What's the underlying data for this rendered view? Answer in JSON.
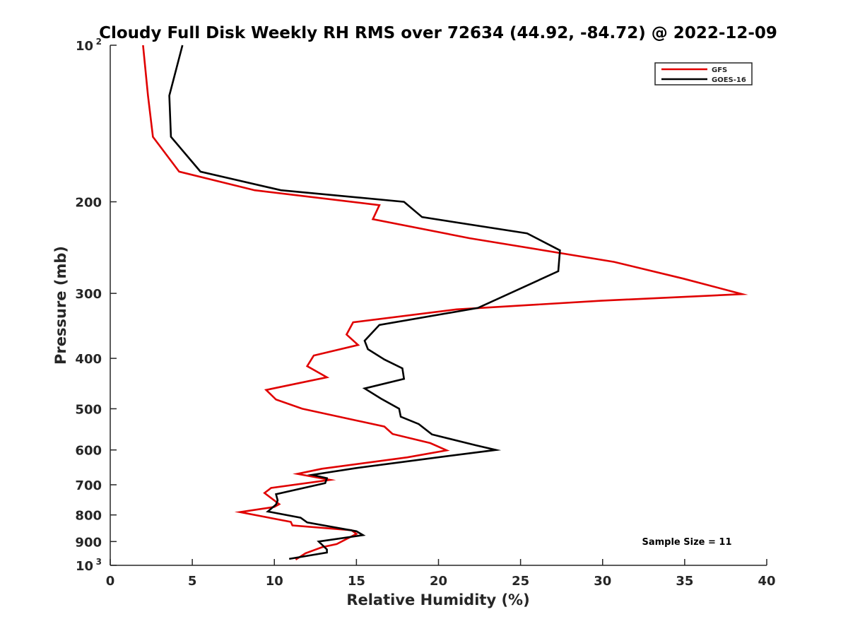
{
  "chart_data": {
    "type": "line",
    "title": "Cloudy Full Disk Weekly RH RMS over 72634 (44.92, -84.72) @ 2022-12-09",
    "xlabel": "Relative Humidity (%)",
    "ylabel": "Pressure (mb)",
    "xlim": [
      0,
      40
    ],
    "ylim": [
      100,
      1000
    ],
    "y_scale": "log",
    "y_reversed": true,
    "x_ticks": [
      "0",
      "5",
      "10",
      "15",
      "20",
      "25",
      "30",
      "35",
      "40"
    ],
    "y_ticks": [
      {
        "value": 100,
        "base": "10",
        "exp": "2"
      },
      {
        "value": 200,
        "label": "200"
      },
      {
        "value": 300,
        "label": "300"
      },
      {
        "value": 400,
        "label": "400"
      },
      {
        "value": 500,
        "label": "500"
      },
      {
        "value": 600,
        "label": "600"
      },
      {
        "value": 700,
        "label": "700"
      },
      {
        "value": 800,
        "label": "800"
      },
      {
        "value": 900,
        "label": "900"
      },
      {
        "value": 1000,
        "base": "10",
        "exp": "3"
      }
    ],
    "legend": "top-right",
    "grid": false,
    "annotation": "Sample Size = 11",
    "series": [
      {
        "name": "GFS",
        "color": "#e00000",
        "points": [
          [
            2.0,
            100
          ],
          [
            2.3,
            125
          ],
          [
            2.6,
            150
          ],
          [
            4.2,
            175
          ],
          [
            8.8,
            190
          ],
          [
            16.4,
            203
          ],
          [
            16.0,
            216
          ],
          [
            21.9,
            235
          ],
          [
            30.7,
            261
          ],
          [
            34.9,
            281
          ],
          [
            38.5,
            301
          ],
          [
            29.9,
            310
          ],
          [
            21.1,
            322
          ],
          [
            14.8,
            341
          ],
          [
            14.4,
            360
          ],
          [
            15.1,
            377
          ],
          [
            12.4,
            395
          ],
          [
            12.0,
            414
          ],
          [
            13.2,
            435
          ],
          [
            9.5,
            460
          ],
          [
            10.1,
            480
          ],
          [
            11.7,
            500
          ],
          [
            16.7,
            541
          ],
          [
            17.2,
            559
          ],
          [
            19.5,
            582
          ],
          [
            20.5,
            601
          ],
          [
            18.1,
            620
          ],
          [
            12.9,
            652
          ],
          [
            11.4,
            667
          ],
          [
            13.4,
            685
          ],
          [
            9.8,
            710
          ],
          [
            9.4,
            726
          ],
          [
            10.3,
            763
          ],
          [
            10.0,
            772
          ],
          [
            7.9,
            790
          ],
          [
            11.0,
            825
          ],
          [
            11.1,
            838
          ],
          [
            14.7,
            856
          ],
          [
            15.0,
            870
          ],
          [
            13.8,
            910
          ],
          [
            12.9,
            923
          ],
          [
            11.9,
            948
          ],
          [
            11.3,
            975
          ]
        ]
      },
      {
        "name": "GOES-16",
        "color": "#000000",
        "points": [
          [
            4.4,
            100
          ],
          [
            3.6,
            125
          ],
          [
            3.7,
            150
          ],
          [
            5.5,
            175
          ],
          [
            10.4,
            190
          ],
          [
            17.9,
            200
          ],
          [
            19.0,
            214
          ],
          [
            25.4,
            230
          ],
          [
            27.4,
            248
          ],
          [
            27.3,
            272
          ],
          [
            22.4,
            320
          ],
          [
            16.4,
            345
          ],
          [
            15.5,
            370
          ],
          [
            15.7,
            384
          ],
          [
            16.7,
            402
          ],
          [
            17.8,
            418
          ],
          [
            17.9,
            438
          ],
          [
            15.5,
            457
          ],
          [
            16.5,
            478
          ],
          [
            17.6,
            500
          ],
          [
            17.7,
            518
          ],
          [
            18.8,
            535
          ],
          [
            19.6,
            560
          ],
          [
            22.3,
            588
          ],
          [
            23.5,
            600
          ],
          [
            20.5,
            617
          ],
          [
            15.0,
            650
          ],
          [
            12.3,
            670
          ],
          [
            13.2,
            680
          ],
          [
            13.1,
            695
          ],
          [
            10.1,
            730
          ],
          [
            10.2,
            750
          ],
          [
            10.1,
            764
          ],
          [
            9.6,
            788
          ],
          [
            11.6,
            810
          ],
          [
            12.0,
            827
          ],
          [
            15.0,
            860
          ],
          [
            15.4,
            875
          ],
          [
            12.7,
            900
          ],
          [
            13.2,
            932
          ],
          [
            13.2,
            945
          ],
          [
            10.9,
            972
          ]
        ]
      }
    ]
  }
}
